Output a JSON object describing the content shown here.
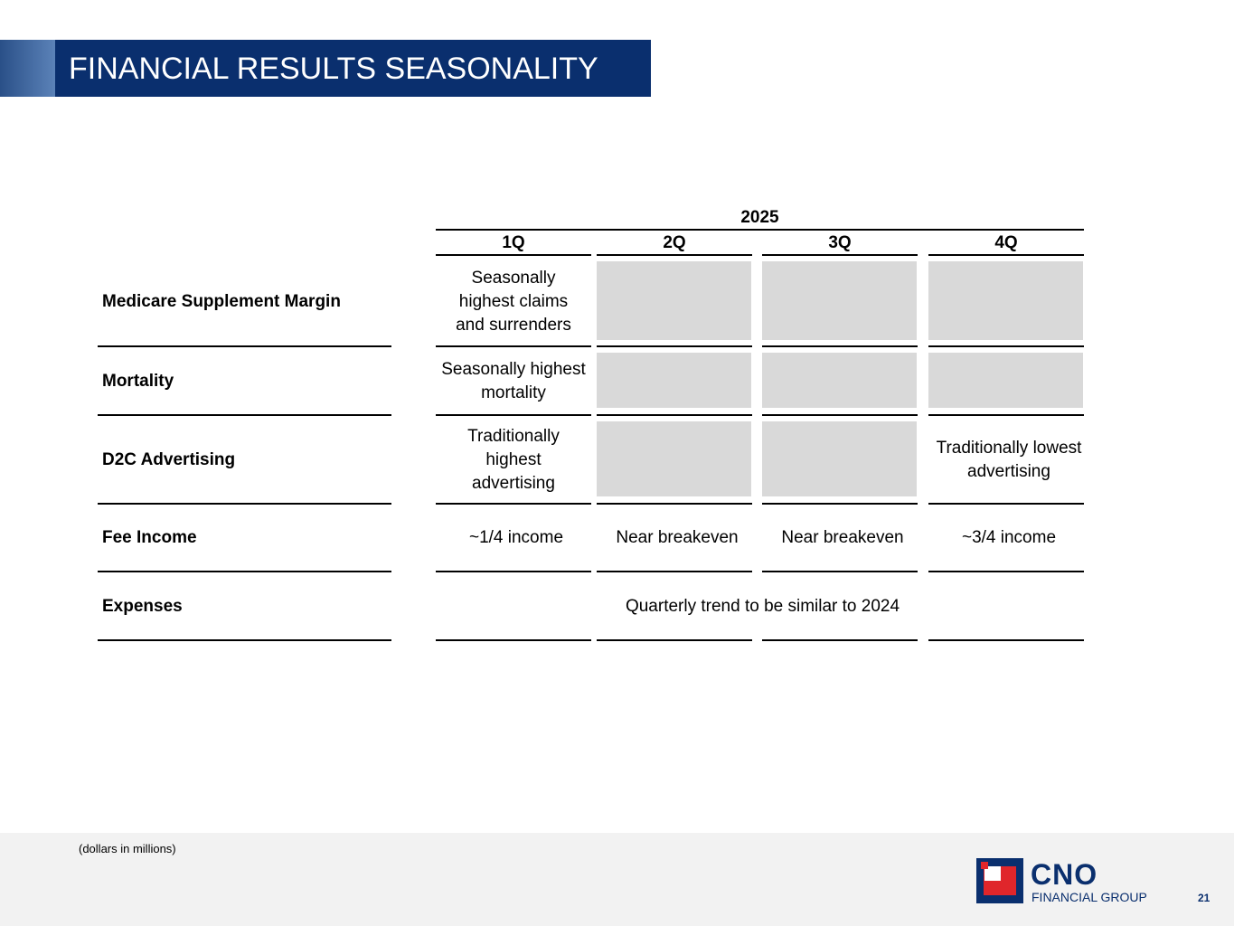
{
  "title": "FINANCIAL RESULTS SEASONALITY",
  "table": {
    "year": "2025",
    "quarters": [
      "1Q",
      "2Q",
      "3Q",
      "4Q"
    ],
    "rows": [
      {
        "label": "Medicare Supplement Margin",
        "q1": "Seasonally highest claims and surrenders",
        "q2": "",
        "q3": "",
        "q4": ""
      },
      {
        "label": "Mortality",
        "q1": "Seasonally highest mortality",
        "q2": "",
        "q3": "",
        "q4": ""
      },
      {
        "label": "D2C Advertising",
        "q1": "Traditionally highest advertising",
        "q2": "",
        "q3": "",
        "q4": "Traditionally lowest advertising"
      },
      {
        "label": "Fee Income",
        "q1": "~1/4 income",
        "q2": "Near breakeven",
        "q3": "Near breakeven",
        "q4": "~3/4 income"
      },
      {
        "label": "Expenses",
        "span": "Quarterly trend to be similar to 2024"
      }
    ]
  },
  "footer": {
    "note": "(dollars in millions)",
    "logo_name": "CNO",
    "logo_sub": "FINANCIAL GROUP",
    "page_number": "21"
  },
  "colors": {
    "navy": "#0a2f6e",
    "gray_cell": "#d9d9d9",
    "logo_red": "#e0262b"
  }
}
